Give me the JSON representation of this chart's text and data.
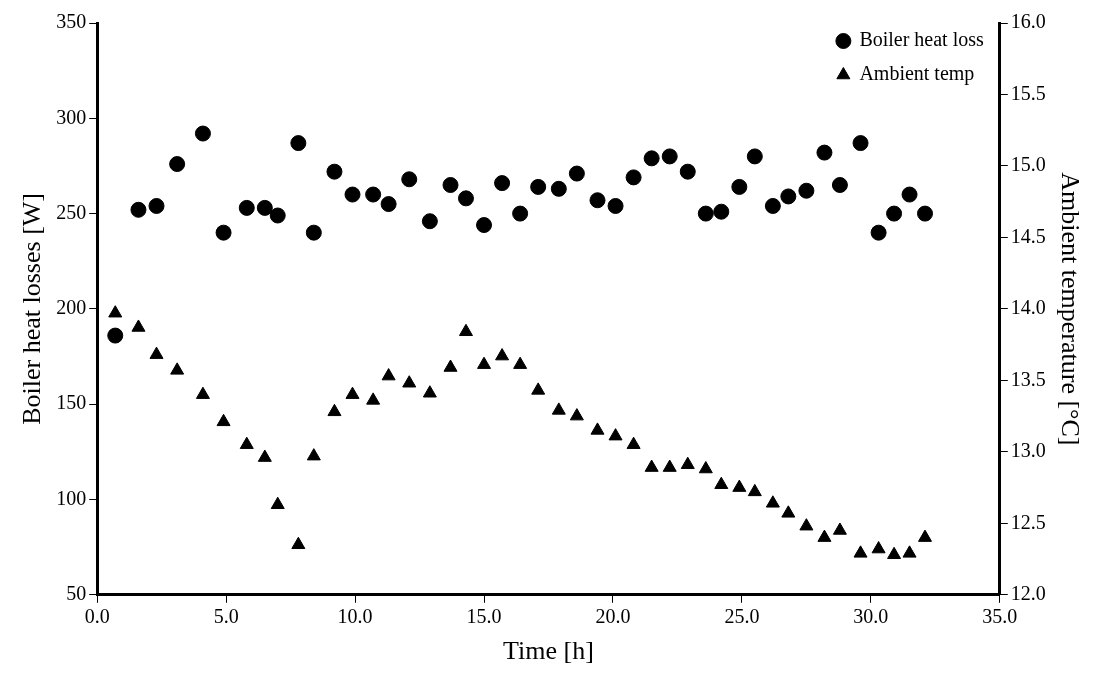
{
  "chart_data": {
    "type": "scatter",
    "xlabel": "Time [h]",
    "ylabel": "Boiler heat losses [W]",
    "y2label": "Ambient temperature [°C]",
    "xlim": [
      0,
      35
    ],
    "xticks": [
      {
        "value": 0,
        "label": "0.0"
      },
      {
        "value": 5,
        "label": "5.0"
      },
      {
        "value": 10,
        "label": "10.0"
      },
      {
        "value": 15,
        "label": "15.0"
      },
      {
        "value": 20,
        "label": "20.0"
      },
      {
        "value": 25,
        "label": "25.0"
      },
      {
        "value": 30,
        "label": "30.0"
      },
      {
        "value": 35,
        "label": "35.0"
      }
    ],
    "ylim": [
      50,
      350
    ],
    "yticks": [
      50,
      100,
      150,
      200,
      250,
      300,
      350
    ],
    "y2lim": [
      12,
      16
    ],
    "y2ticks": [
      {
        "value": 12,
        "label": "12.0"
      },
      {
        "value": 12.5,
        "label": "12.5"
      },
      {
        "value": 13,
        "label": "13.0"
      },
      {
        "value": 13.5,
        "label": "13.5"
      },
      {
        "value": 14,
        "label": "14.0"
      },
      {
        "value": 14.5,
        "label": "14.5"
      },
      {
        "value": 15,
        "label": "15.0"
      },
      {
        "value": 15.5,
        "label": "15.5"
      },
      {
        "value": 16,
        "label": "16.0"
      }
    ],
    "grid": false,
    "legend": "top right",
    "x": [
      0.7,
      1.6,
      2.3,
      3.1,
      4.1,
      4.9,
      5.8,
      6.5,
      7.0,
      7.8,
      8.4,
      9.2,
      9.9,
      10.7,
      11.3,
      12.1,
      12.9,
      13.7,
      14.3,
      15.0,
      15.7,
      16.4,
      17.1,
      17.9,
      18.6,
      19.4,
      20.1,
      20.8,
      21.5,
      22.2,
      22.9,
      23.6,
      24.2,
      24.9,
      25.5,
      26.2,
      26.8,
      27.5,
      28.2,
      28.8,
      29.6,
      30.3,
      30.9,
      31.5,
      32.1
    ],
    "series": [
      {
        "name": "Boiler heat loss",
        "color": "#000000",
        "marker": "circle",
        "values": [
          186,
          252,
          254,
          276,
          292,
          240,
          253,
          253,
          249,
          287,
          240,
          272,
          260,
          260,
          255,
          268,
          246,
          265,
          258,
          244,
          266,
          250,
          264,
          263,
          271,
          257,
          254,
          269,
          279,
          280,
          272,
          250,
          251,
          264,
          280,
          254,
          259,
          262,
          282,
          265,
          287,
          240,
          250,
          260,
          250
        ]
      },
      {
        "name": "Ambient temp",
        "color": "#000000",
        "marker": "triangle",
        "axis": "y2",
        "values": [
          13.97,
          13.87,
          13.68,
          13.57,
          13.4,
          13.21,
          13.05,
          12.96,
          12.63,
          12.35,
          12.97,
          13.28,
          13.4,
          13.36,
          13.53,
          13.48,
          13.41,
          13.59,
          13.84,
          13.61,
          13.67,
          13.61,
          13.43,
          13.29,
          13.25,
          13.15,
          13.11,
          13.05,
          12.89,
          12.89,
          12.91,
          12.88,
          12.77,
          12.75,
          12.72,
          12.64,
          12.57,
          12.48,
          12.4,
          12.45,
          12.29,
          12.32,
          12.28,
          12.29,
          12.4
        ]
      }
    ]
  }
}
